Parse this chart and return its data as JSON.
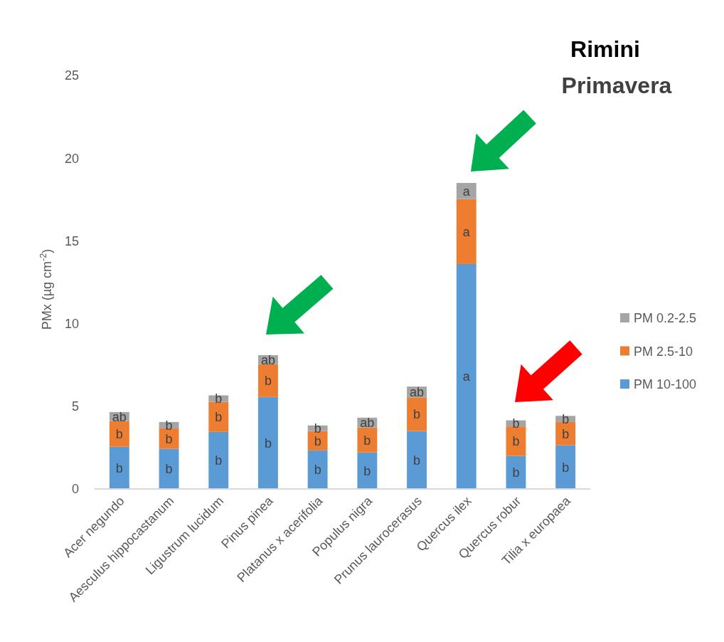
{
  "chart_data": {
    "type": "bar",
    "title": "Rimini",
    "subtitle": "Primavera",
    "ylabel": "PMx (µg cm$^{-2}$)",
    "stacked": true,
    "grid": false,
    "legend": "right",
    "categories": [
      "Acer negundo",
      "Aesculus hippocastanum",
      "Ligustrum lucidum",
      "Pinus pinea",
      "Platanus x acerifolia",
      "Populus nigra",
      "Prunus laurocerasus",
      "Quercus ilex",
      "Quercus robur",
      "Tilia x europaea"
    ],
    "ylim": [
      0,
      25
    ],
    "yticks": [
      0,
      5,
      10,
      15,
      20,
      25
    ],
    "series": [
      {
        "name": "PM 10-100",
        "color": "#5b9bd5",
        "values": [
          2.55,
          2.43,
          3.45,
          5.56,
          2.33,
          2.21,
          3.5,
          13.6,
          2.0,
          2.64
        ],
        "value_labels": [
          "b",
          "b",
          "b",
          "b",
          "b",
          "b",
          "b",
          "a",
          "b",
          "b"
        ]
      },
      {
        "name": "PM 2.5-10",
        "color": "#ed7d31",
        "values": [
          1.55,
          1.23,
          1.82,
          1.98,
          1.17,
          1.5,
          2.04,
          3.93,
          1.78,
          1.41
        ],
        "value_labels": [
          "b",
          "b",
          "b",
          "b",
          "b",
          "b",
          "b",
          "a",
          "b",
          "b"
        ]
      },
      {
        "name": "PM 0.2-2.5",
        "color": "#a5a5a5",
        "values": [
          0.55,
          0.39,
          0.39,
          0.55,
          0.34,
          0.6,
          0.65,
          0.97,
          0.37,
          0.37
        ],
        "value_labels": [
          "ab",
          "b",
          "b",
          "ab",
          "b",
          "ab",
          "ab",
          "a",
          "b",
          "b"
        ]
      }
    ]
  }
}
